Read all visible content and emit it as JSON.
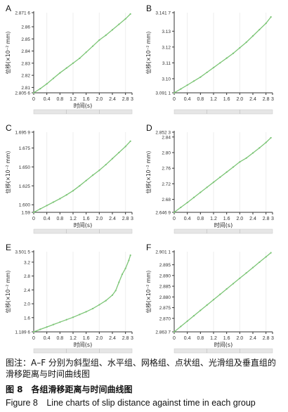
{
  "chart_data": [
    {
      "panel": "A",
      "type": "line",
      "ylabel": "位移(×10⁻² mm)",
      "xlabel": "时间(s)",
      "xlim": [
        0,
        3
      ],
      "ylim": [
        2.8056,
        2.8716
      ],
      "yticks": [
        "2.805 6",
        "2.81",
        "2.82",
        "2.83",
        "2.84",
        "2.85",
        "2.86",
        "2.871 6"
      ],
      "ytick_values": [
        2.8056,
        2.81,
        2.82,
        2.83,
        2.84,
        2.85,
        2.86,
        2.8716
      ],
      "xticks": [
        "0",
        "0.4",
        "0.8",
        "1.2",
        "1.6",
        "2.0",
        "2.4",
        "2.8",
        "3"
      ],
      "xtick_values": [
        0,
        0.4,
        0.8,
        1.2,
        1.6,
        2.0,
        2.4,
        2.8,
        3.0
      ],
      "x": [
        0,
        0.2,
        0.4,
        0.6,
        0.8,
        1.0,
        1.2,
        1.4,
        1.6,
        1.8,
        2.0,
        2.2,
        2.4,
        2.6,
        2.8,
        2.95
      ],
      "y": [
        2.8056,
        2.809,
        2.813,
        2.8175,
        2.822,
        2.826,
        2.83,
        2.834,
        2.839,
        2.844,
        2.849,
        2.853,
        2.8575,
        2.862,
        2.8665,
        2.8705
      ]
    },
    {
      "panel": "B",
      "type": "line",
      "ylabel": "位移(×10⁻² mm)",
      "xlabel": "",
      "xlim": [
        0,
        3
      ],
      "ylim": [
        3.0911,
        3.1417
      ],
      "yticks": [
        "3.091 1",
        "3.10",
        "3.11",
        "3.12",
        "3.13",
        "3.141 7"
      ],
      "ytick_values": [
        3.0911,
        3.1,
        3.11,
        3.12,
        3.13,
        3.1417
      ],
      "xticks": [
        "0",
        "0.4",
        "0.8",
        "1.2",
        "1.6",
        "2.0",
        "2.4",
        "2.8",
        "3"
      ],
      "xtick_values": [
        0,
        0.4,
        0.8,
        1.2,
        1.6,
        2.0,
        2.4,
        2.8,
        3.0
      ],
      "x": [
        0,
        0.2,
        0.4,
        0.6,
        0.8,
        1.0,
        1.2,
        1.4,
        1.6,
        1.8,
        2.0,
        2.2,
        2.4,
        2.6,
        2.8,
        2.95
      ],
      "y": [
        3.0911,
        3.0935,
        3.096,
        3.0985,
        3.101,
        3.104,
        3.107,
        3.11,
        3.113,
        3.116,
        3.1195,
        3.123,
        3.127,
        3.131,
        3.135,
        3.139
      ]
    },
    {
      "panel": "C",
      "type": "line",
      "ylabel": "位移(×10⁻² mm)",
      "xlabel": "时间(s)",
      "xlim": [
        0,
        3
      ],
      "ylim": [
        1.59,
        1.6959
      ],
      "yticks": [
        "1.59",
        "1.600",
        "1.625",
        "1.650",
        "1.675",
        "1.695 9"
      ],
      "ytick_values": [
        1.59,
        1.6,
        1.625,
        1.65,
        1.675,
        1.6959
      ],
      "xticks": [
        "0",
        "0.4",
        "0.8",
        "1.2",
        "1.6",
        "2.0",
        "2.4",
        "2.8",
        "3"
      ],
      "xtick_values": [
        0,
        0.4,
        0.8,
        1.2,
        1.6,
        2.0,
        2.4,
        2.8,
        3.0
      ],
      "x": [
        0,
        0.2,
        0.4,
        0.6,
        0.8,
        1.0,
        1.2,
        1.4,
        1.6,
        1.8,
        2.0,
        2.2,
        2.4,
        2.6,
        2.8,
        2.95
      ],
      "y": [
        1.59,
        1.5945,
        1.599,
        1.6035,
        1.608,
        1.613,
        1.6185,
        1.625,
        1.632,
        1.639,
        1.6455,
        1.653,
        1.661,
        1.669,
        1.677,
        1.684
      ]
    },
    {
      "panel": "D",
      "type": "line",
      "ylabel": "位移(×10⁻² mm)",
      "xlabel": "时间(s)",
      "xlim": [
        0,
        3
      ],
      "ylim": [
        2.6469,
        2.8523
      ],
      "yticks": [
        "2.646 9",
        "2.68",
        "2.72",
        "2.76",
        "2.80",
        "2.84",
        "2.852 3"
      ],
      "ytick_values": [
        2.6469,
        2.68,
        2.72,
        2.76,
        2.8,
        2.84,
        2.8523
      ],
      "xticks": [
        "0",
        "0.4",
        "0.8",
        "1.2",
        "1.6",
        "2.0",
        "2.4",
        "2.8",
        "3"
      ],
      "xtick_values": [
        0,
        0.4,
        0.8,
        1.2,
        1.6,
        2.0,
        2.4,
        2.8,
        3.0
      ],
      "x": [
        0,
        0.2,
        0.4,
        0.6,
        0.8,
        1.0,
        1.2,
        1.4,
        1.6,
        1.8,
        2.0,
        2.2,
        2.4,
        2.6,
        2.8,
        2.95
      ],
      "y": [
        2.6469,
        2.6595,
        2.672,
        2.685,
        2.698,
        2.711,
        2.724,
        2.737,
        2.75,
        2.763,
        2.776,
        2.786,
        2.799,
        2.812,
        2.826,
        2.838
      ]
    },
    {
      "panel": "E",
      "type": "line",
      "ylabel": "位移(×10⁻² mm)",
      "xlabel": "时间(s)",
      "xlim": [
        0,
        3
      ],
      "ylim": [
        1.1896,
        3.5015
      ],
      "yticks": [
        "1.189 6",
        "1.6",
        "2.0",
        "2.4",
        "2.8",
        "3.2",
        "3.501 5"
      ],
      "ytick_values": [
        1.1896,
        1.6,
        2.0,
        2.4,
        2.8,
        3.2,
        3.5015
      ],
      "xticks": [
        "0",
        "0.4",
        "0.8",
        "1.2",
        "1.6",
        "2.0",
        "2.4",
        "2.8",
        "3"
      ],
      "xtick_values": [
        0,
        0.4,
        0.8,
        1.2,
        1.6,
        2.0,
        2.4,
        2.8,
        3.0
      ],
      "x": [
        0,
        0.2,
        0.4,
        0.6,
        0.8,
        1.0,
        1.2,
        1.4,
        1.6,
        1.8,
        2.0,
        2.2,
        2.4,
        2.5,
        2.6,
        2.7,
        2.8,
        2.9,
        2.95
      ],
      "y": [
        1.1896,
        1.26,
        1.33,
        1.4,
        1.47,
        1.54,
        1.61,
        1.69,
        1.77,
        1.86,
        1.97,
        2.09,
        2.25,
        2.38,
        2.62,
        2.85,
        3.02,
        3.25,
        3.4
      ]
    },
    {
      "panel": "F",
      "type": "line",
      "ylabel": "位移(×10⁻² mm)",
      "xlabel": "时间(s)",
      "xlim": [
        0,
        3
      ],
      "ylim": [
        2.8637,
        2.9011
      ],
      "yticks": [
        "2.863 7",
        "2.870",
        "2.875",
        "2.880",
        "2.885",
        "2.890",
        "2.895",
        "2.901 1"
      ],
      "ytick_values": [
        2.8637,
        2.87,
        2.875,
        2.88,
        2.885,
        2.89,
        2.895,
        2.9011
      ],
      "xticks": [
        "0",
        "0.4",
        "0.8",
        "1.2",
        "1.6",
        "2.0",
        "2.4",
        "2.8",
        "3"
      ],
      "xtick_values": [
        0,
        0.4,
        0.8,
        1.2,
        1.6,
        2.0,
        2.4,
        2.8,
        3.0
      ],
      "x": [
        0,
        0.2,
        0.4,
        0.6,
        0.8,
        1.0,
        1.2,
        1.4,
        1.6,
        1.8,
        2.0,
        2.2,
        2.4,
        2.6,
        2.8,
        2.95
      ],
      "y": [
        2.8637,
        2.8662,
        2.8687,
        2.8712,
        2.8737,
        2.8762,
        2.8787,
        2.8812,
        2.8837,
        2.8862,
        2.8887,
        2.8912,
        2.8937,
        2.8962,
        2.8987,
        2.9006
      ]
    }
  ],
  "colors": {
    "line": "#7cc576",
    "axis": "#333333",
    "grid": "#eeeeee",
    "scrollbar": "#e6e6e6"
  },
  "caption": {
    "note": "图注：A–F 分别为斜型组、水平组、网格组、点状组、光滑组及垂直组的滑移距离与时间曲线图",
    "title_cn": "图 8　各组滑移距离与时间曲线图",
    "title_en": "Figure 8　Line charts of slip distance against time in each group"
  }
}
